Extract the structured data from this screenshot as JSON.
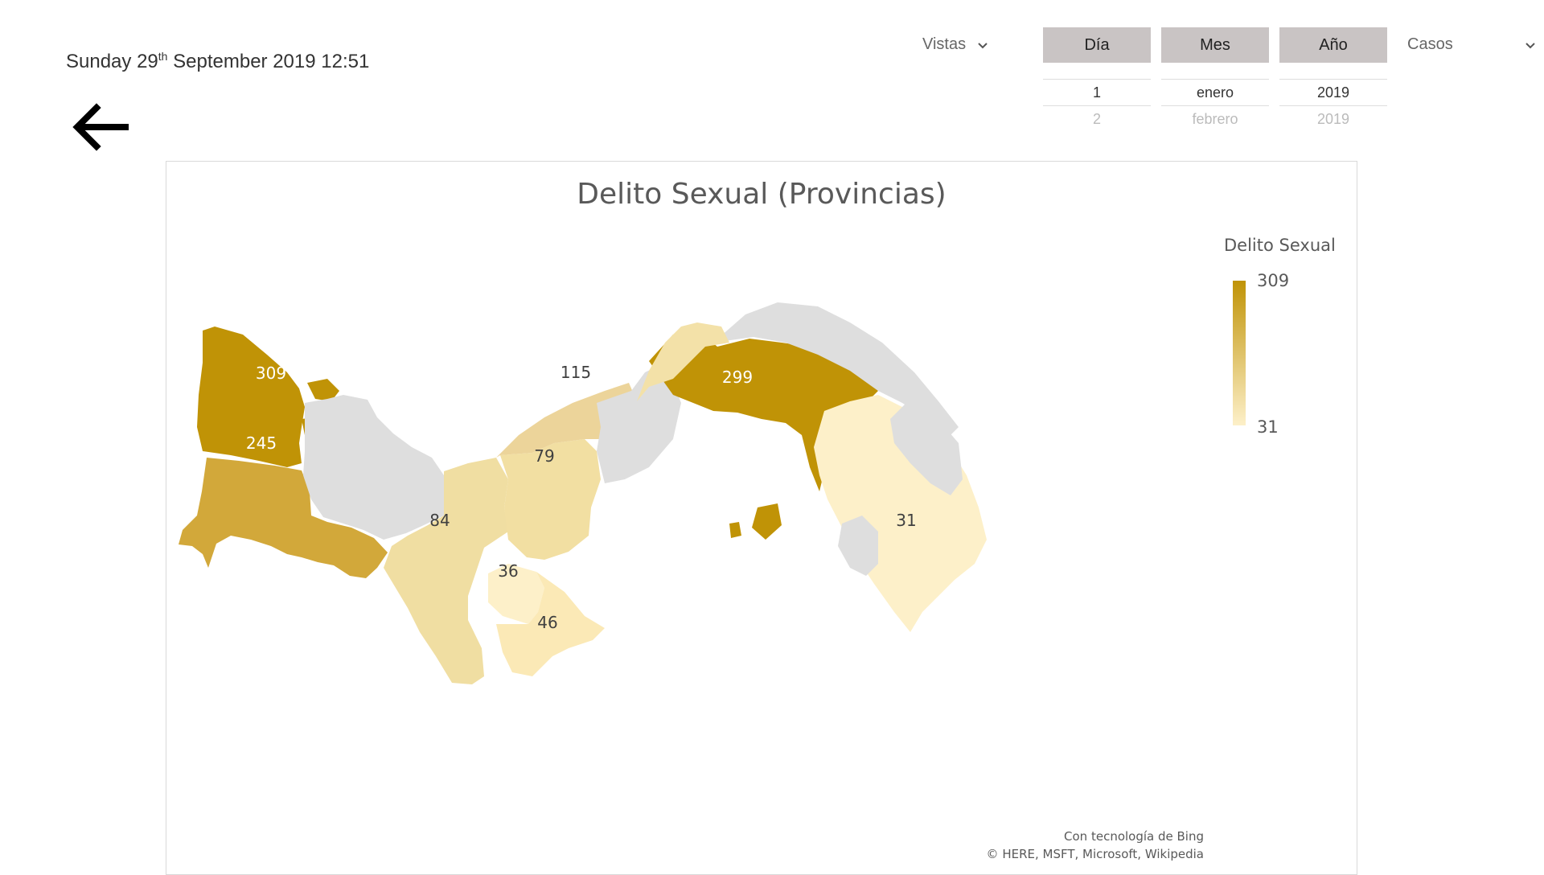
{
  "header": {
    "weekday": "Sunday",
    "day": "29",
    "day_suffix": "th",
    "month_year": "September 2019",
    "time": "12:51"
  },
  "nav": {
    "back_icon": "arrow-left-icon"
  },
  "dropdowns": {
    "vistas_label": "Vistas",
    "casos_label": "Casos",
    "chevron_icon": "chevron-down-icon"
  },
  "date_picker": {
    "day": {
      "header": "Día",
      "selected": "1",
      "next": "2"
    },
    "month": {
      "header": "Mes",
      "selected": "enero",
      "next": "febrero"
    },
    "year": {
      "header": "Año",
      "selected": "2019",
      "next": "2019"
    }
  },
  "colors": {
    "scale_high": "#c09306",
    "scale_low": "#fdf0c9",
    "no_data": "#dedede"
  },
  "chart_data": {
    "type": "choropleth",
    "title": "Delito Sexual (Provincias)",
    "legend": {
      "title": "Delito Sexual",
      "max": 309,
      "min": 31,
      "placement": "top-right"
    },
    "regions_values": [
      309,
      245,
      115,
      299,
      79,
      84,
      36,
      46,
      31
    ],
    "credit_line1": "Con tecnología de Bing",
    "credit_line2": "© HERE, MSFT, Microsoft, Wikipedia"
  }
}
